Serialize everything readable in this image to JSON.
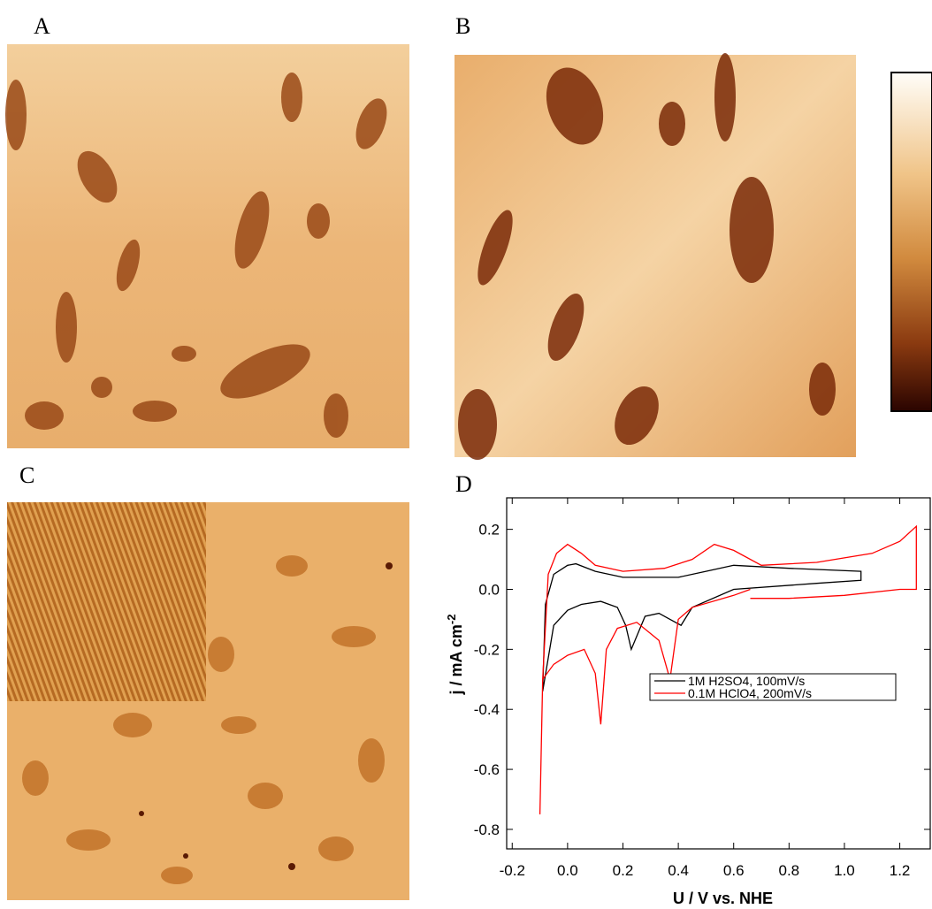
{
  "panels": [
    "A",
    "B",
    "C",
    "D"
  ],
  "chart_data": {
    "type": "line",
    "xlabel": "U / V vs. NHE",
    "ylabel": "j / mA cm",
    "ylabel_superscript": "-2",
    "xlim": [
      -0.22,
      1.31
    ],
    "ylim": [
      -0.865,
      0.305
    ],
    "xticks": [
      -0.2,
      {
        "value": 0,
        "label": "0.0"
      },
      0.2,
      0.4,
      0.6,
      0.8,
      {
        "value": 1,
        "label": "1.0"
      },
      1.2
    ],
    "yticks": [
      0.2,
      {
        "value": 0,
        "label": "0.0"
      },
      -0.2,
      -0.4,
      -0.6,
      -0.8
    ],
    "legend": "lower right",
    "series": [
      {
        "name": "1M H2SO4, 100mV/s",
        "color": "#000000",
        "x": [
          -0.09,
          -0.08,
          -0.05,
          0.0,
          0.03,
          0.1,
          0.2,
          0.4,
          0.5,
          0.6,
          0.8,
          1.06,
          1.06,
          0.9,
          0.6,
          0.45,
          0.41,
          0.37,
          0.33,
          0.28,
          0.23,
          0.21,
          0.18,
          0.12,
          0.05,
          0.0,
          -0.05,
          -0.09
        ],
        "values": [
          -0.34,
          -0.05,
          0.05,
          0.08,
          0.085,
          0.06,
          0.04,
          0.04,
          0.06,
          0.08,
          0.07,
          0.06,
          0.03,
          0.02,
          0.0,
          -0.06,
          -0.12,
          -0.1,
          -0.08,
          -0.09,
          -0.2,
          -0.12,
          -0.06,
          -0.04,
          -0.05,
          -0.07,
          -0.12,
          -0.34
        ]
      },
      {
        "name": "0.1M HClO4, 200mV/s",
        "color": "#ff0000",
        "x": [
          0.66,
          0.6,
          0.45,
          0.4,
          0.37,
          0.33,
          0.25,
          0.18,
          0.14,
          0.12,
          0.1,
          0.06,
          0.0,
          -0.05,
          -0.09,
          -0.1,
          -0.09,
          -0.07,
          -0.04,
          0.0,
          0.05,
          0.1,
          0.2,
          0.35,
          0.45,
          0.53,
          0.6,
          0.7,
          0.9,
          1.1,
          1.2,
          1.26,
          1.26,
          1.2,
          1.0,
          0.8,
          0.66
        ],
        "values": [
          0.0,
          -0.02,
          -0.06,
          -0.1,
          -0.3,
          -0.17,
          -0.11,
          -0.13,
          -0.2,
          -0.45,
          -0.28,
          -0.2,
          -0.22,
          -0.25,
          -0.3,
          -0.75,
          -0.3,
          0.05,
          0.12,
          0.15,
          0.12,
          0.08,
          0.06,
          0.07,
          0.1,
          0.15,
          0.13,
          0.08,
          0.09,
          0.12,
          0.16,
          0.21,
          0.0,
          0.0,
          -0.02,
          -0.03,
          -0.03
        ]
      }
    ]
  }
}
